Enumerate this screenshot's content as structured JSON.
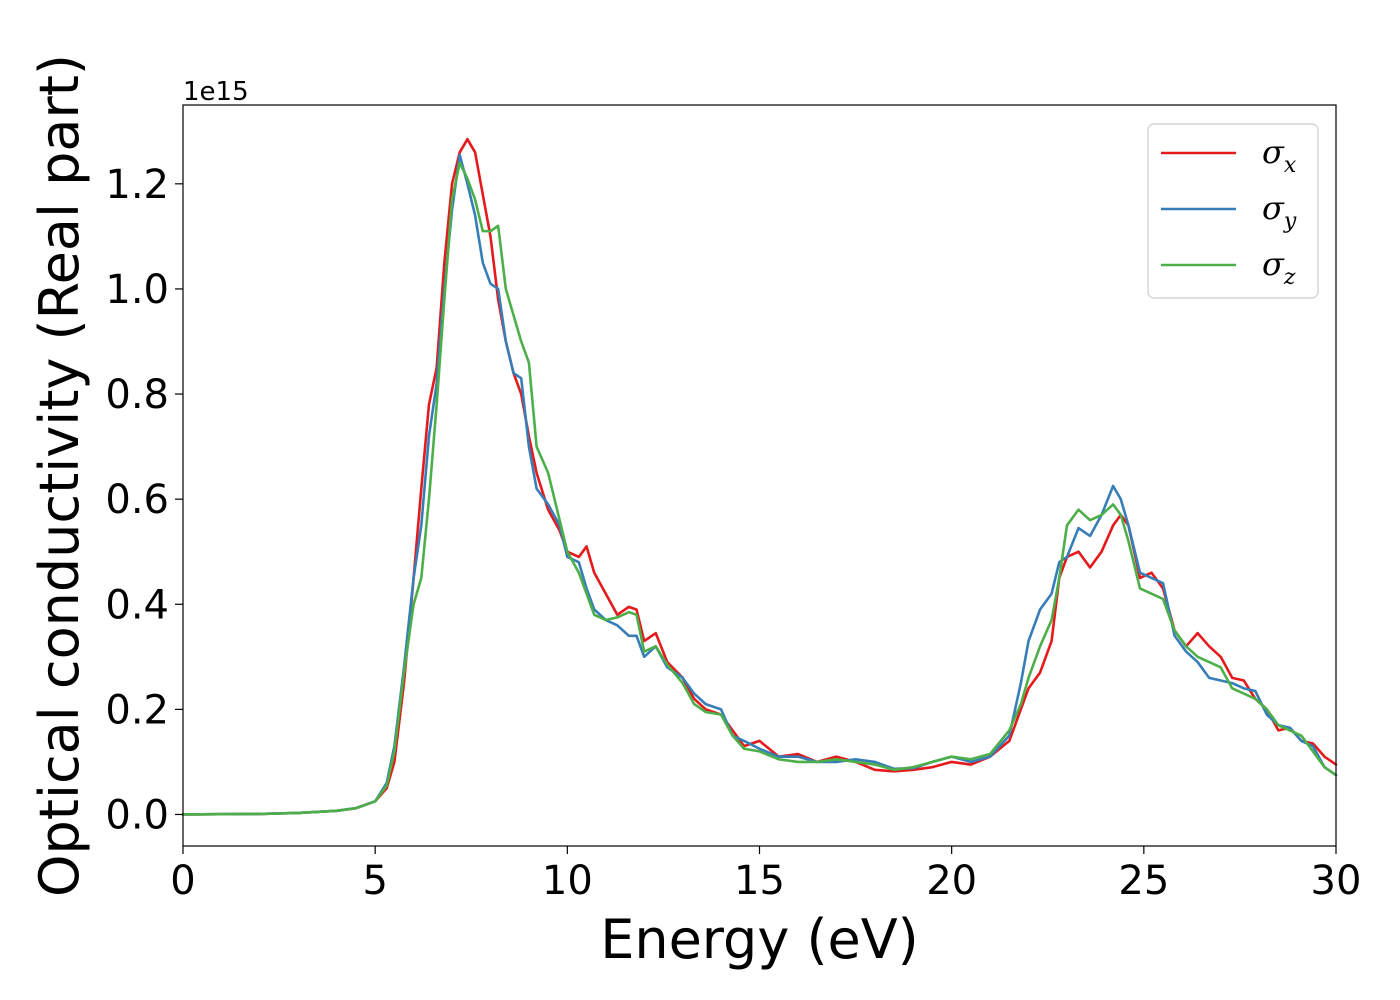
{
  "chart_data": {
    "type": "line",
    "xlabel": "Energy (eV)",
    "ylabel": "Optical conductivity (Real part)",
    "y_offset_label": "1e15",
    "xlim": [
      0,
      30
    ],
    "ylim": [
      -0.06,
      1.35
    ],
    "x_ticks": [
      0,
      5,
      10,
      15,
      20,
      25,
      30
    ],
    "x_tick_labels": [
      "0",
      "5",
      "10",
      "15",
      "20",
      "25",
      "30"
    ],
    "y_ticks": [
      0.0,
      0.2,
      0.4,
      0.6,
      0.8,
      1.0,
      1.2
    ],
    "y_tick_labels": [
      "0.0",
      "0.2",
      "0.4",
      "0.6",
      "0.8",
      "1.0",
      "1.2"
    ],
    "grid": false,
    "legend_position": "top-right",
    "series": [
      {
        "name": "σ",
        "subscript": "x",
        "color": "#e41a1c",
        "points": [
          [
            0,
            0
          ],
          [
            2,
            0.001
          ],
          [
            3,
            0.003
          ],
          [
            4,
            0.007
          ],
          [
            4.5,
            0.012
          ],
          [
            5,
            0.025
          ],
          [
            5.3,
            0.05
          ],
          [
            5.5,
            0.1
          ],
          [
            5.75,
            0.25
          ],
          [
            6,
            0.45
          ],
          [
            6.2,
            0.62
          ],
          [
            6.4,
            0.78
          ],
          [
            6.6,
            0.85
          ],
          [
            6.8,
            1.05
          ],
          [
            7.0,
            1.2
          ],
          [
            7.2,
            1.26
          ],
          [
            7.4,
            1.285
          ],
          [
            7.6,
            1.26
          ],
          [
            7.8,
            1.18
          ],
          [
            8.0,
            1.1
          ],
          [
            8.2,
            0.98
          ],
          [
            8.4,
            0.9
          ],
          [
            8.6,
            0.84
          ],
          [
            8.8,
            0.8
          ],
          [
            9.0,
            0.72
          ],
          [
            9.2,
            0.65
          ],
          [
            9.5,
            0.58
          ],
          [
            9.8,
            0.54
          ],
          [
            10.0,
            0.5
          ],
          [
            10.3,
            0.49
          ],
          [
            10.5,
            0.51
          ],
          [
            10.7,
            0.46
          ],
          [
            11.0,
            0.42
          ],
          [
            11.3,
            0.38
          ],
          [
            11.6,
            0.395
          ],
          [
            11.8,
            0.39
          ],
          [
            12.0,
            0.33
          ],
          [
            12.3,
            0.345
          ],
          [
            12.6,
            0.29
          ],
          [
            13.0,
            0.26
          ],
          [
            13.3,
            0.22
          ],
          [
            13.6,
            0.2
          ],
          [
            14.0,
            0.19
          ],
          [
            14.3,
            0.16
          ],
          [
            14.6,
            0.13
          ],
          [
            15.0,
            0.14
          ],
          [
            15.5,
            0.11
          ],
          [
            16.0,
            0.115
          ],
          [
            16.5,
            0.1
          ],
          [
            17.0,
            0.11
          ],
          [
            17.5,
            0.1
          ],
          [
            18.0,
            0.085
          ],
          [
            18.5,
            0.082
          ],
          [
            19.0,
            0.085
          ],
          [
            19.5,
            0.09
          ],
          [
            20.0,
            0.1
          ],
          [
            20.5,
            0.095
          ],
          [
            21.0,
            0.11
          ],
          [
            21.5,
            0.14
          ],
          [
            21.8,
            0.2
          ],
          [
            22.0,
            0.24
          ],
          [
            22.3,
            0.27
          ],
          [
            22.6,
            0.33
          ],
          [
            22.8,
            0.45
          ],
          [
            23.0,
            0.49
          ],
          [
            23.3,
            0.5
          ],
          [
            23.6,
            0.47
          ],
          [
            23.9,
            0.5
          ],
          [
            24.2,
            0.55
          ],
          [
            24.4,
            0.57
          ],
          [
            24.6,
            0.55
          ],
          [
            24.9,
            0.45
          ],
          [
            25.2,
            0.46
          ],
          [
            25.5,
            0.43
          ],
          [
            25.8,
            0.35
          ],
          [
            26.1,
            0.32
          ],
          [
            26.4,
            0.345
          ],
          [
            26.7,
            0.32
          ],
          [
            27.0,
            0.3
          ],
          [
            27.3,
            0.26
          ],
          [
            27.6,
            0.255
          ],
          [
            27.9,
            0.22
          ],
          [
            28.2,
            0.2
          ],
          [
            28.5,
            0.16
          ],
          [
            28.8,
            0.165
          ],
          [
            29.1,
            0.14
          ],
          [
            29.4,
            0.135
          ],
          [
            29.7,
            0.11
          ],
          [
            30.0,
            0.095
          ]
        ]
      },
      {
        "name": "σ",
        "subscript": "y",
        "color": "#377eb8",
        "points": [
          [
            0,
            0
          ],
          [
            2,
            0.001
          ],
          [
            3,
            0.003
          ],
          [
            4,
            0.007
          ],
          [
            4.5,
            0.012
          ],
          [
            5,
            0.025
          ],
          [
            5.3,
            0.06
          ],
          [
            5.5,
            0.13
          ],
          [
            5.75,
            0.28
          ],
          [
            6,
            0.45
          ],
          [
            6.2,
            0.55
          ],
          [
            6.4,
            0.72
          ],
          [
            6.6,
            0.82
          ],
          [
            6.8,
            1.0
          ],
          [
            7.0,
            1.15
          ],
          [
            7.2,
            1.255
          ],
          [
            7.4,
            1.2
          ],
          [
            7.6,
            1.14
          ],
          [
            7.8,
            1.05
          ],
          [
            8.0,
            1.01
          ],
          [
            8.2,
            1.0
          ],
          [
            8.4,
            0.9
          ],
          [
            8.6,
            0.84
          ],
          [
            8.8,
            0.83
          ],
          [
            9.0,
            0.7
          ],
          [
            9.2,
            0.62
          ],
          [
            9.5,
            0.59
          ],
          [
            9.8,
            0.55
          ],
          [
            10.0,
            0.49
          ],
          [
            10.3,
            0.48
          ],
          [
            10.5,
            0.43
          ],
          [
            10.7,
            0.39
          ],
          [
            11.0,
            0.37
          ],
          [
            11.3,
            0.36
          ],
          [
            11.6,
            0.34
          ],
          [
            11.8,
            0.34
          ],
          [
            12.0,
            0.3
          ],
          [
            12.3,
            0.32
          ],
          [
            12.6,
            0.28
          ],
          [
            13.0,
            0.26
          ],
          [
            13.3,
            0.23
          ],
          [
            13.6,
            0.21
          ],
          [
            14.0,
            0.2
          ],
          [
            14.3,
            0.15
          ],
          [
            14.6,
            0.14
          ],
          [
            15.0,
            0.125
          ],
          [
            15.5,
            0.11
          ],
          [
            16.0,
            0.11
          ],
          [
            16.5,
            0.1
          ],
          [
            17.0,
            0.1
          ],
          [
            17.5,
            0.105
          ],
          [
            18.0,
            0.1
          ],
          [
            18.5,
            0.087
          ],
          [
            19.0,
            0.088
          ],
          [
            19.5,
            0.1
          ],
          [
            20.0,
            0.11
          ],
          [
            20.5,
            0.1
          ],
          [
            21.0,
            0.11
          ],
          [
            21.5,
            0.15
          ],
          [
            21.8,
            0.25
          ],
          [
            22.0,
            0.33
          ],
          [
            22.3,
            0.39
          ],
          [
            22.6,
            0.42
          ],
          [
            22.8,
            0.48
          ],
          [
            23.0,
            0.49
          ],
          [
            23.3,
            0.545
          ],
          [
            23.6,
            0.53
          ],
          [
            23.9,
            0.57
          ],
          [
            24.2,
            0.625
          ],
          [
            24.4,
            0.6
          ],
          [
            24.6,
            0.55
          ],
          [
            24.9,
            0.46
          ],
          [
            25.2,
            0.45
          ],
          [
            25.5,
            0.44
          ],
          [
            25.8,
            0.34
          ],
          [
            26.1,
            0.31
          ],
          [
            26.4,
            0.29
          ],
          [
            26.7,
            0.26
          ],
          [
            27.0,
            0.255
          ],
          [
            27.3,
            0.25
          ],
          [
            27.6,
            0.24
          ],
          [
            27.9,
            0.235
          ],
          [
            28.2,
            0.19
          ],
          [
            28.5,
            0.17
          ],
          [
            28.8,
            0.165
          ],
          [
            29.1,
            0.14
          ],
          [
            29.4,
            0.13
          ],
          [
            29.7,
            0.09
          ],
          [
            30.0,
            0.075
          ]
        ]
      },
      {
        "name": "σ",
        "subscript": "z",
        "color": "#4daf4a",
        "points": [
          [
            0,
            0
          ],
          [
            2,
            0.001
          ],
          [
            3,
            0.003
          ],
          [
            4,
            0.007
          ],
          [
            4.5,
            0.012
          ],
          [
            5,
            0.025
          ],
          [
            5.3,
            0.055
          ],
          [
            5.5,
            0.12
          ],
          [
            5.75,
            0.27
          ],
          [
            6,
            0.4
          ],
          [
            6.2,
            0.45
          ],
          [
            6.4,
            0.6
          ],
          [
            6.6,
            0.78
          ],
          [
            6.8,
            0.98
          ],
          [
            7.0,
            1.17
          ],
          [
            7.2,
            1.24
          ],
          [
            7.4,
            1.21
          ],
          [
            7.6,
            1.17
          ],
          [
            7.8,
            1.11
          ],
          [
            8.0,
            1.11
          ],
          [
            8.2,
            1.12
          ],
          [
            8.4,
            1.0
          ],
          [
            8.6,
            0.95
          ],
          [
            8.8,
            0.9
          ],
          [
            9.0,
            0.86
          ],
          [
            9.2,
            0.7
          ],
          [
            9.5,
            0.65
          ],
          [
            9.8,
            0.56
          ],
          [
            10.0,
            0.5
          ],
          [
            10.3,
            0.46
          ],
          [
            10.5,
            0.42
          ],
          [
            10.7,
            0.38
          ],
          [
            11.0,
            0.37
          ],
          [
            11.3,
            0.375
          ],
          [
            11.6,
            0.385
          ],
          [
            11.8,
            0.38
          ],
          [
            12.0,
            0.31
          ],
          [
            12.3,
            0.32
          ],
          [
            12.6,
            0.285
          ],
          [
            13.0,
            0.25
          ],
          [
            13.3,
            0.21
          ],
          [
            13.6,
            0.195
          ],
          [
            14.0,
            0.19
          ],
          [
            14.3,
            0.15
          ],
          [
            14.6,
            0.125
          ],
          [
            15.0,
            0.12
          ],
          [
            15.5,
            0.105
          ],
          [
            16.0,
            0.1
          ],
          [
            16.5,
            0.1
          ],
          [
            17.0,
            0.105
          ],
          [
            17.5,
            0.1
          ],
          [
            18.0,
            0.095
          ],
          [
            18.5,
            0.085
          ],
          [
            19.0,
            0.09
          ],
          [
            19.5,
            0.1
          ],
          [
            20.0,
            0.11
          ],
          [
            20.5,
            0.105
          ],
          [
            21.0,
            0.115
          ],
          [
            21.5,
            0.16
          ],
          [
            21.8,
            0.21
          ],
          [
            22.0,
            0.26
          ],
          [
            22.3,
            0.32
          ],
          [
            22.6,
            0.37
          ],
          [
            22.8,
            0.45
          ],
          [
            23.0,
            0.55
          ],
          [
            23.3,
            0.58
          ],
          [
            23.6,
            0.56
          ],
          [
            23.9,
            0.57
          ],
          [
            24.2,
            0.59
          ],
          [
            24.4,
            0.57
          ],
          [
            24.6,
            0.52
          ],
          [
            24.9,
            0.43
          ],
          [
            25.2,
            0.42
          ],
          [
            25.5,
            0.41
          ],
          [
            25.8,
            0.35
          ],
          [
            26.1,
            0.32
          ],
          [
            26.4,
            0.3
          ],
          [
            26.7,
            0.29
          ],
          [
            27.0,
            0.28
          ],
          [
            27.3,
            0.24
          ],
          [
            27.6,
            0.23
          ],
          [
            27.9,
            0.22
          ],
          [
            28.2,
            0.2
          ],
          [
            28.5,
            0.17
          ],
          [
            28.8,
            0.16
          ],
          [
            29.1,
            0.15
          ],
          [
            29.4,
            0.12
          ],
          [
            29.7,
            0.09
          ],
          [
            30.0,
            0.075
          ]
        ]
      }
    ]
  }
}
